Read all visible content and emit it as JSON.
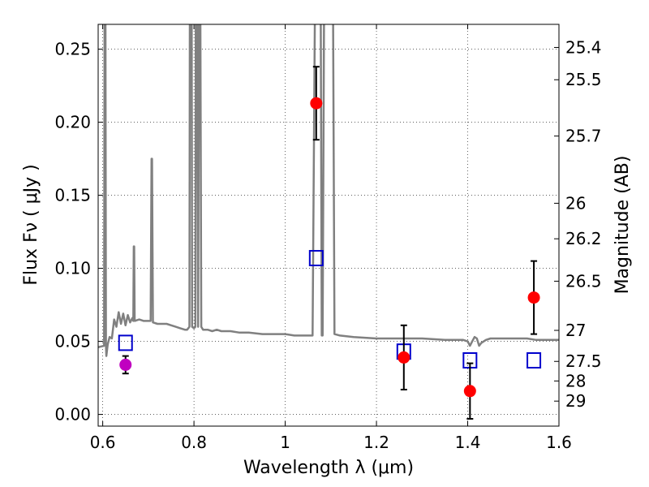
{
  "chart_data": {
    "type": "scatter",
    "title": "",
    "xlabel": "Wavelength  λ (μm)",
    "ylabel": "Flux  Fν  ( μJy )",
    "ylabel_right": "Magnitude (AB)",
    "xlim": [
      0.59,
      1.6
    ],
    "ylim": [
      -0.008,
      0.267
    ],
    "grid": true,
    "x_ticks": [
      0.6,
      0.8,
      1.0,
      1.2,
      1.4,
      1.6
    ],
    "x_tick_labels": [
      "0.6",
      "0.8",
      "1",
      "1.2",
      "1.4",
      "1.6"
    ],
    "y_ticks": [
      0.0,
      0.05,
      0.1,
      0.15,
      0.2,
      0.25
    ],
    "y_tick_labels": [
      "0.00",
      "0.05",
      "0.10",
      "0.15",
      "0.20",
      "0.25"
    ],
    "magnitude_ticks": [
      "25.4",
      "25.5",
      "25.7",
      "26",
      "26.2",
      "26.5",
      "27",
      "27.5",
      "28",
      "29"
    ],
    "model_spectrum": {
      "color": "#808080",
      "points": [
        [
          0.59,
          0.046
        ],
        [
          0.603,
          0.047
        ],
        [
          0.604,
          0.27
        ],
        [
          0.606,
          0.27
        ],
        [
          0.607,
          0.047
        ],
        [
          0.608,
          0.04
        ],
        [
          0.611,
          0.048
        ],
        [
          0.615,
          0.053
        ],
        [
          0.62,
          0.052
        ],
        [
          0.625,
          0.065
        ],
        [
          0.63,
          0.06
        ],
        [
          0.635,
          0.07
        ],
        [
          0.64,
          0.062
        ],
        [
          0.645,
          0.069
        ],
        [
          0.65,
          0.061
        ],
        [
          0.655,
          0.068
        ],
        [
          0.66,
          0.063
        ],
        [
          0.665,
          0.066
        ],
        [
          0.667,
          0.064
        ],
        [
          0.668,
          0.115
        ],
        [
          0.669,
          0.115
        ],
        [
          0.67,
          0.064
        ],
        [
          0.68,
          0.065
        ],
        [
          0.69,
          0.064
        ],
        [
          0.7,
          0.064
        ],
        [
          0.705,
          0.064
        ],
        [
          0.707,
          0.175
        ],
        [
          0.708,
          0.175
        ],
        [
          0.71,
          0.063
        ],
        [
          0.72,
          0.062
        ],
        [
          0.73,
          0.062
        ],
        [
          0.74,
          0.062
        ],
        [
          0.75,
          0.061
        ],
        [
          0.76,
          0.06
        ],
        [
          0.77,
          0.059
        ],
        [
          0.78,
          0.058
        ],
        [
          0.785,
          0.058
        ],
        [
          0.79,
          0.06
        ],
        [
          0.791,
          0.27
        ],
        [
          0.795,
          0.27
        ],
        [
          0.796,
          0.06
        ],
        [
          0.8,
          0.059
        ],
        [
          0.803,
          0.06
        ],
        [
          0.804,
          0.27
        ],
        [
          0.807,
          0.27
        ],
        [
          0.809,
          0.06
        ],
        [
          0.811,
          0.27
        ],
        [
          0.814,
          0.27
        ],
        [
          0.816,
          0.06
        ],
        [
          0.82,
          0.058
        ],
        [
          0.83,
          0.058
        ],
        [
          0.84,
          0.057
        ],
        [
          0.85,
          0.058
        ],
        [
          0.86,
          0.057
        ],
        [
          0.87,
          0.057
        ],
        [
          0.88,
          0.057
        ],
        [
          0.9,
          0.056
        ],
        [
          0.92,
          0.056
        ],
        [
          0.95,
          0.055
        ],
        [
          0.98,
          0.055
        ],
        [
          1.0,
          0.055
        ],
        [
          1.02,
          0.054
        ],
        [
          1.05,
          0.054
        ],
        [
          1.06,
          0.054
        ],
        [
          1.065,
          0.27
        ],
        [
          1.075,
          0.27
        ],
        [
          1.078,
          0.27
        ],
        [
          1.08,
          0.054
        ],
        [
          1.082,
          0.054
        ],
        [
          1.085,
          0.27
        ],
        [
          1.088,
          0.27
        ],
        [
          1.092,
          0.27
        ],
        [
          1.097,
          0.27
        ],
        [
          1.1,
          0.27
        ],
        [
          1.105,
          0.27
        ],
        [
          1.108,
          0.055
        ],
        [
          1.12,
          0.054
        ],
        [
          1.15,
          0.053
        ],
        [
          1.2,
          0.052
        ],
        [
          1.25,
          0.052
        ],
        [
          1.3,
          0.052
        ],
        [
          1.35,
          0.051
        ],
        [
          1.39,
          0.051
        ],
        [
          1.4,
          0.05
        ],
        [
          1.405,
          0.047
        ],
        [
          1.41,
          0.05
        ],
        [
          1.415,
          0.053
        ],
        [
          1.42,
          0.052
        ],
        [
          1.425,
          0.047
        ],
        [
          1.43,
          0.049
        ],
        [
          1.44,
          0.051
        ],
        [
          1.45,
          0.052
        ],
        [
          1.47,
          0.052
        ],
        [
          1.5,
          0.052
        ],
        [
          1.53,
          0.052
        ],
        [
          1.55,
          0.051
        ],
        [
          1.58,
          0.051
        ],
        [
          1.6,
          0.051
        ]
      ]
    },
    "observed": {
      "color": "#ff0000",
      "points": [
        {
          "x": 1.068,
          "y": 0.213,
          "err": 0.025
        },
        {
          "x": 1.26,
          "y": 0.039,
          "err": 0.022
        },
        {
          "x": 1.405,
          "y": 0.016,
          "err": 0.019
        },
        {
          "x": 1.545,
          "y": 0.08,
          "err": 0.025
        }
      ]
    },
    "observed_secondary": {
      "color": "#c000c0",
      "points": [
        {
          "x": 0.65,
          "y": 0.034,
          "err": 0.006
        }
      ]
    },
    "model_photometry": {
      "color": "#0000cc",
      "points": [
        {
          "x": 0.65,
          "y": 0.049
        },
        {
          "x": 1.068,
          "y": 0.107
        },
        {
          "x": 1.26,
          "y": 0.043
        },
        {
          "x": 1.405,
          "y": 0.037
        },
        {
          "x": 1.545,
          "y": 0.037
        }
      ]
    }
  }
}
